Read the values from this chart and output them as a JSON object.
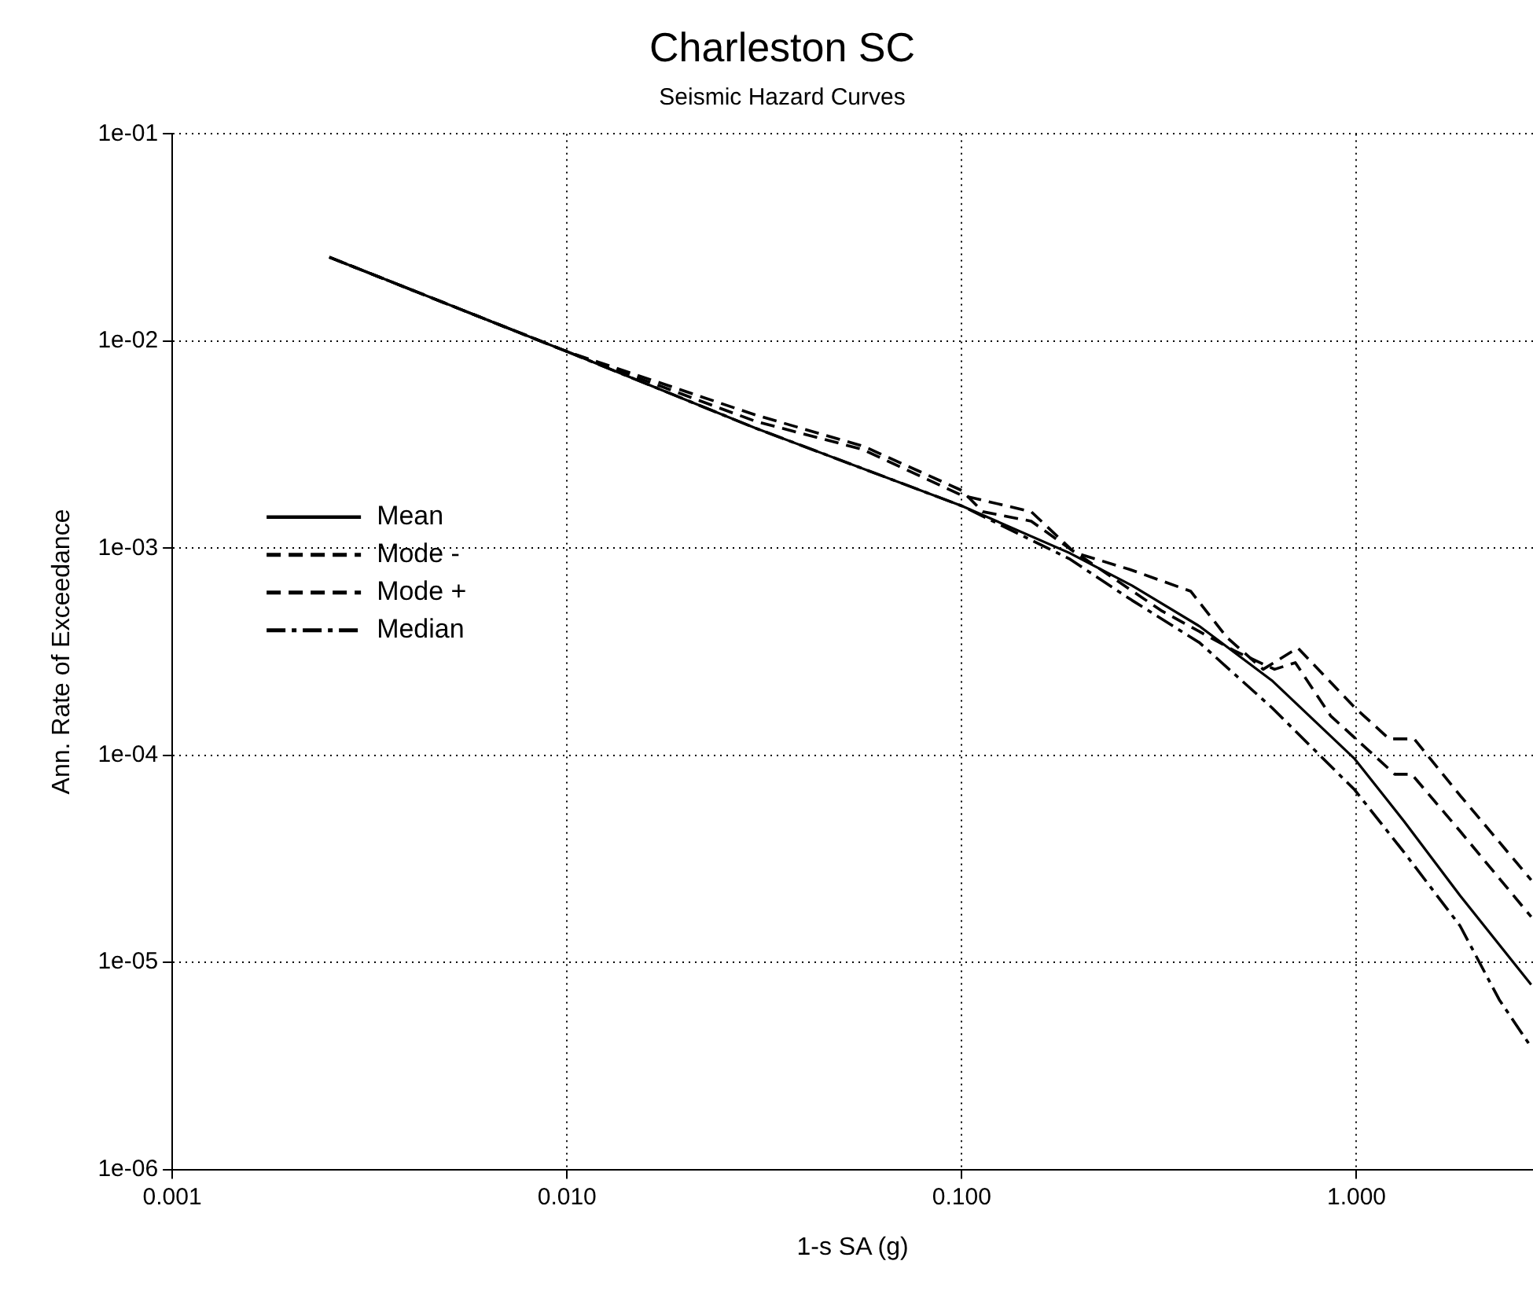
{
  "chart_data": {
    "type": "line",
    "title": "Charleston SC",
    "subtitle": "Seismic Hazard Curves",
    "xlabel": "1-s SA (g)",
    "ylabel": "Ann. Rate of Exceedance",
    "log": "xy",
    "grid": true,
    "legend": "left",
    "marker": "none",
    "xlim": [
      0.001,
      2.8
    ],
    "ylim": [
      1e-06,
      0.1
    ],
    "xticks": [
      {
        "value": 0.001,
        "label": "0.001"
      },
      {
        "value": 0.01,
        "label": "0.010"
      },
      {
        "value": 0.1,
        "label": "0.100"
      },
      {
        "value": 1,
        "label": "1.000"
      }
    ],
    "yticks": [
      {
        "value": 1e-06,
        "label": "1e-06"
      },
      {
        "value": 1e-05,
        "label": "1e-05"
      },
      {
        "value": 0.0001,
        "label": "1e-04"
      },
      {
        "value": 0.001,
        "label": "1e-03"
      },
      {
        "value": 0.01,
        "label": "1e-02"
      },
      {
        "value": 0.1,
        "label": "1e-01"
      }
    ],
    "series": [
      {
        "name": "Mean",
        "color": "#000000",
        "line_style": "solid",
        "x": [
          0.0025,
          0.01,
          0.03,
          0.1,
          0.187,
          0.27,
          0.4,
          0.61,
          0.99,
          1.32,
          1.83,
          2.77
        ],
        "values": [
          0.0254,
          0.0089,
          0.0038,
          0.0016,
          0.00095,
          0.00066,
          0.00042,
          0.00023,
          9.6e-05,
          4.8e-05,
          2.1e-05,
          7.8e-06
        ]
      },
      {
        "name": "Mode -",
        "color": "#000000",
        "line_style": "dashed",
        "x": [
          0.0025,
          0.01,
          0.03,
          0.056,
          0.1,
          0.15,
          0.19,
          0.32,
          0.49,
          0.62,
          0.7,
          0.86,
          1.25,
          1.38,
          1.83,
          2.77
        ],
        "values": [
          0.0254,
          0.0089,
          0.0041,
          0.003,
          0.0018,
          0.0015,
          0.00098,
          0.0005,
          0.00032,
          0.00026,
          0.00028,
          0.000155,
          8.1e-05,
          8.1e-05,
          4.3e-05,
          1.66e-05
        ]
      },
      {
        "name": "Mode +",
        "color": "#000000",
        "line_style": "dashed",
        "x": [
          0.0025,
          0.01,
          0.03,
          0.0565,
          0.1,
          0.113,
          0.15,
          0.194,
          0.266,
          0.38,
          0.47,
          0.58,
          0.71,
          0.99,
          1.21,
          1.4,
          1.83,
          2.77
        ],
        "values": [
          0.0254,
          0.0089,
          0.0044,
          0.0031,
          0.0019,
          0.0015,
          0.00135,
          0.00095,
          0.00079,
          0.00062,
          0.00037,
          0.00026,
          0.00033,
          0.00017,
          0.00012,
          0.00012,
          6.4e-05,
          2.5e-05
        ]
      },
      {
        "name": "Median",
        "color": "#000000",
        "line_style": "dashdot",
        "x": [
          0.0025,
          0.01,
          0.03,
          0.1,
          0.187,
          0.27,
          0.4,
          0.61,
          0.99,
          1.32,
          1.83,
          2.3,
          2.77
        ],
        "values": [
          0.0254,
          0.0089,
          0.0038,
          0.0016,
          0.00089,
          0.00056,
          0.00035,
          0.00017,
          6.8e-05,
          3.4e-05,
          1.5e-05,
          6.6e-06,
          3.9e-06
        ]
      }
    ]
  }
}
